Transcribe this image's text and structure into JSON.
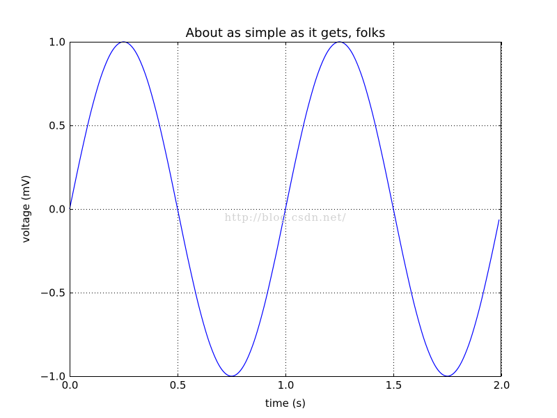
{
  "chart_data": {
    "type": "line",
    "title": "About as simple as it gets, folks",
    "xlabel": "time (s)",
    "ylabel": "voltage (mV)",
    "xlim": [
      0.0,
      2.0
    ],
    "ylim": [
      -1.0,
      1.0
    ],
    "xticks": [
      "0.0",
      "0.5",
      "1.0",
      "1.5",
      "2.0"
    ],
    "yticks": [
      "1.0",
      "0.5",
      "0.0",
      "−0.5",
      "−1.0"
    ],
    "grid": true,
    "series": [
      {
        "color": "#0000ff",
        "x": [
          0.0,
          0.05,
          0.1,
          0.15,
          0.2,
          0.25,
          0.3,
          0.35,
          0.4,
          0.45,
          0.5,
          0.55,
          0.6,
          0.65,
          0.7,
          0.75,
          0.8,
          0.85,
          0.9,
          0.95,
          1.0,
          1.05,
          1.1,
          1.15,
          1.2,
          1.25,
          1.3,
          1.35,
          1.4,
          1.45,
          1.5,
          1.55,
          1.6,
          1.65,
          1.7,
          1.75,
          1.8,
          1.85,
          1.9,
          1.95,
          1.99
        ],
        "y": [
          0.0,
          0.309,
          0.588,
          0.809,
          0.951,
          1.0,
          0.951,
          0.809,
          0.588,
          0.309,
          0.0,
          -0.309,
          -0.588,
          -0.809,
          -0.951,
          -1.0,
          -0.951,
          -0.809,
          -0.588,
          -0.309,
          0.0,
          0.309,
          0.588,
          0.809,
          0.951,
          1.0,
          0.951,
          0.809,
          0.588,
          0.309,
          0.0,
          -0.309,
          -0.588,
          -0.809,
          -0.951,
          -1.0,
          -0.951,
          -0.809,
          -0.588,
          -0.309,
          -0.063
        ]
      }
    ]
  },
  "watermark": "http://blog.csdn.net/"
}
